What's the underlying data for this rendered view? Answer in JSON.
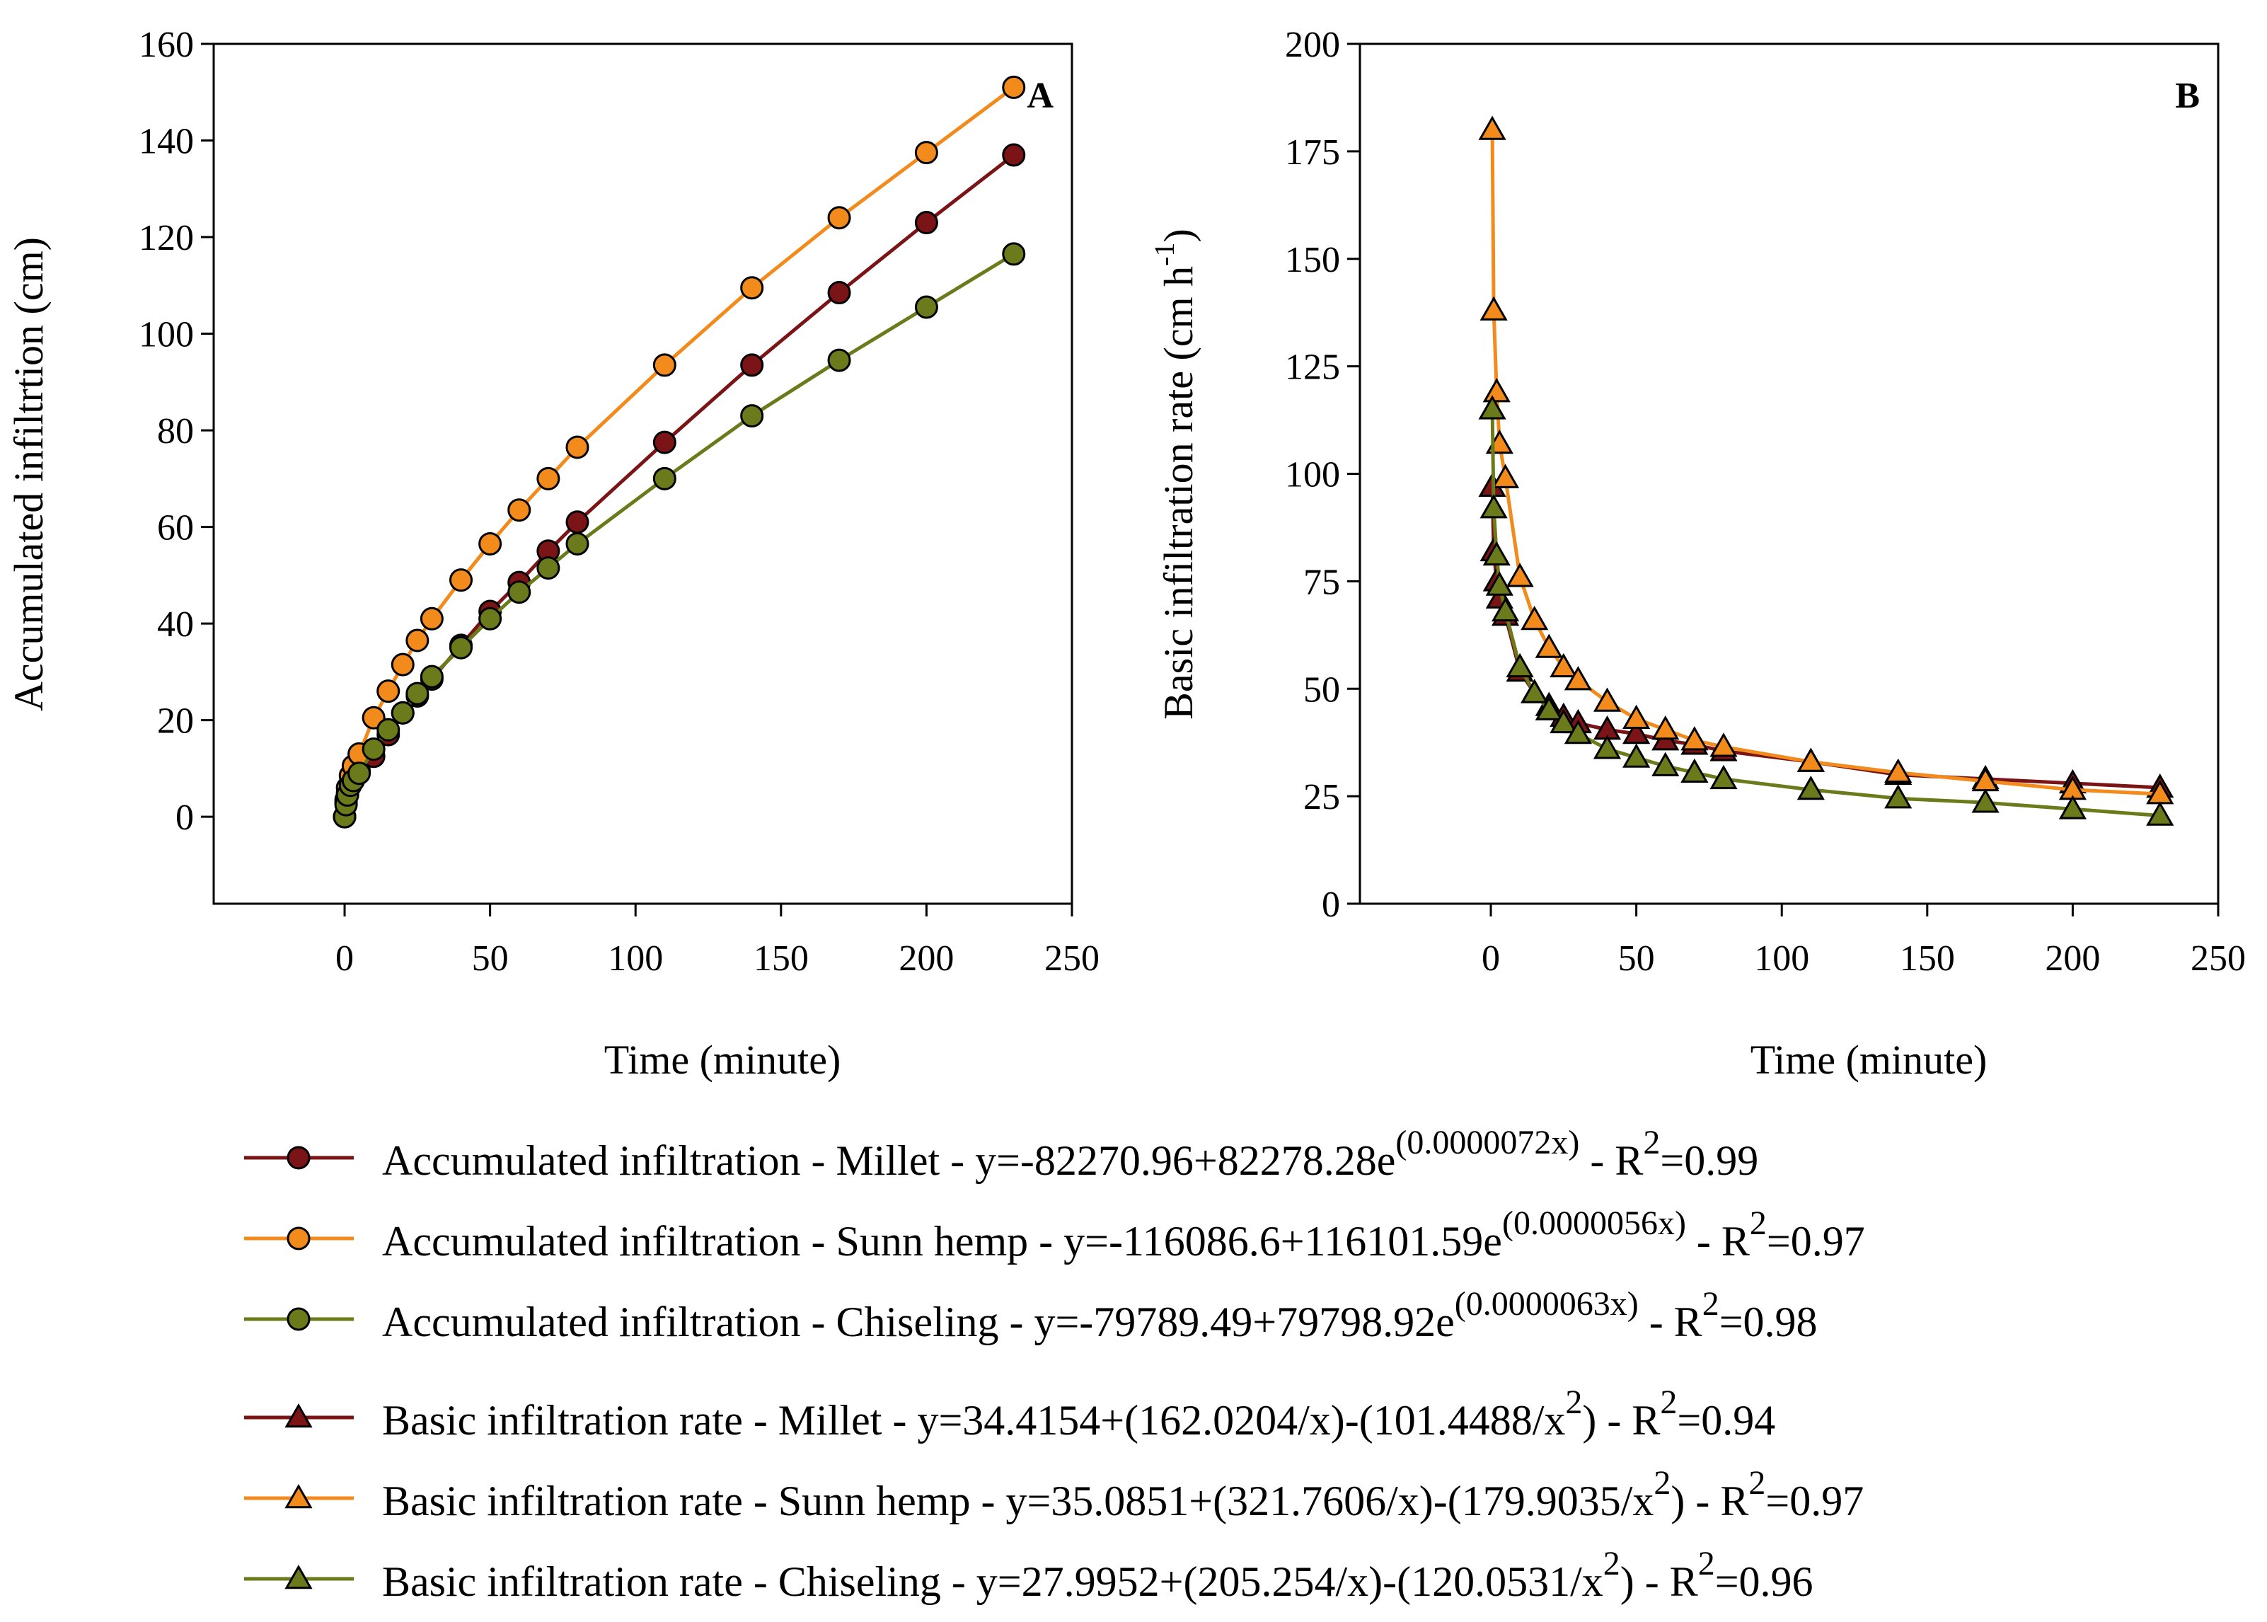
{
  "chart_data": [
    {
      "type": "line",
      "panel_label": "A",
      "xlabel": "Time (minute)",
      "ylabel": "Accumulated infiltrtion (cm)",
      "xlim": [
        -45,
        250
      ],
      "ylim": [
        -18,
        160
      ],
      "xticks": [
        0,
        50,
        100,
        150,
        200,
        250
      ],
      "yticks": [
        0,
        20,
        40,
        60,
        80,
        100,
        120,
        140,
        160
      ],
      "grid": false,
      "marker": "circle",
      "x": [
        0,
        0.5,
        1,
        2,
        3,
        5,
        10,
        15,
        20,
        25,
        30,
        40,
        50,
        60,
        70,
        80,
        110,
        140,
        170,
        200,
        230
      ],
      "series": [
        {
          "name": "Accumulated infiltration - Millet",
          "color": "#7B1416",
          "values": [
            0,
            3,
            5,
            7,
            8.5,
            9.5,
            12.5,
            17,
            21.5,
            25,
            28.5,
            35.5,
            42.5,
            48.5,
            55,
            61,
            77.5,
            93.5,
            108.5,
            123,
            137
          ]
        },
        {
          "name": "Accumulated infiltration - Sunn hemp",
          "color": "#F28A1C",
          "values": [
            0,
            3.5,
            6,
            8.5,
            10.5,
            13,
            20.5,
            26,
            31.5,
            36.5,
            41,
            49,
            56.5,
            63.5,
            70,
            76.5,
            93.5,
            109.5,
            124,
            137.5,
            151
          ]
        },
        {
          "name": "Accumulated infiltration - Chiseling",
          "color": "#6B7A1A",
          "values": [
            0,
            2.5,
            4.5,
            6.5,
            7.5,
            9,
            14,
            18,
            21.5,
            25.5,
            29,
            35,
            41,
            46.5,
            51.5,
            56.5,
            70,
            83,
            94.5,
            105.5,
            116.5
          ]
        }
      ]
    },
    {
      "type": "line",
      "panel_label": "B",
      "xlabel": "Time (minute)",
      "ylabel": "Basic infiltration rate (cm h",
      "ylabel_sup": "-1",
      "ylabel_end": ")",
      "xlim": [
        -45,
        250
      ],
      "ylim": [
        0,
        200
      ],
      "xticks": [
        0,
        50,
        100,
        150,
        200,
        250
      ],
      "yticks": [
        0,
        25,
        50,
        75,
        100,
        125,
        150,
        175,
        200
      ],
      "grid": false,
      "marker": "triangle",
      "x": [
        0.5,
        1,
        2,
        3,
        5,
        10,
        15,
        20,
        25,
        30,
        40,
        50,
        60,
        70,
        80,
        110,
        140,
        170,
        200,
        230
      ],
      "series": [
        {
          "name": "Basic infiltration rate - Millet",
          "color": "#7B1416",
          "values": [
            97,
            82,
            75,
            71,
            67,
            54,
            49,
            46,
            43.5,
            42,
            40.5,
            39.5,
            38,
            37,
            35.5,
            33,
            30,
            29,
            28,
            27
          ]
        },
        {
          "name": "Basic infiltration rate - Sunn hemp",
          "color": "#F28A1C",
          "values": [
            180,
            138,
            119,
            107,
            99,
            76,
            66,
            59.5,
            55,
            52,
            47,
            43,
            40.5,
            38,
            36.5,
            33,
            30.5,
            28.5,
            26.5,
            25.5
          ]
        },
        {
          "name": "Basic infiltration rate - Chiseling",
          "color": "#6B7A1A",
          "values": [
            115,
            92,
            81,
            74,
            68,
            55,
            49,
            45,
            42,
            39.5,
            36,
            34,
            32,
            30.5,
            29,
            26.5,
            24.5,
            23.5,
            22,
            20.5
          ]
        }
      ]
    }
  ],
  "legend": {
    "placement": "bottom",
    "entries": [
      {
        "marker": "circle",
        "color": "#7B1416",
        "pre": "Accumulated infiltration - Millet - y=-82270.96+82278.28e",
        "sup": "(0.0000072x)",
        "mid": " - R",
        "sup2": "2",
        "post": "=0.99"
      },
      {
        "marker": "circle",
        "color": "#F28A1C",
        "pre": "Accumulated infiltration - Sunn hemp - y=-116086.6+116101.59e",
        "sup": "(0.0000056x)",
        "mid": " - R",
        "sup2": "2",
        "post": "=0.97"
      },
      {
        "marker": "circle",
        "color": "#6B7A1A",
        "pre": "Accumulated infiltration - Chiseling - y=-79789.49+79798.92e",
        "sup": "(0.0000063x)",
        "mid": " - R",
        "sup2": "2",
        "post": "=0.98"
      },
      {
        "marker": "triangle",
        "color": "#7B1416",
        "pre": "Basic infiltration rate - Millet - y=34.4154+(162.0204/x)-(101.4488/x",
        "sup": "2",
        "mid": ") - R",
        "sup2": "2",
        "post": "=0.94"
      },
      {
        "marker": "triangle",
        "color": "#F28A1C",
        "pre": "Basic infiltration rate - Sunn hemp - y=35.0851+(321.7606/x)-(179.9035/x",
        "sup": "2",
        "mid": ") - R",
        "sup2": "2",
        "post": "=0.97"
      },
      {
        "marker": "triangle",
        "color": "#6B7A1A",
        "pre": "Basic infiltration rate - Chiseling - y=27.9952+(205.254/x)-(120.0531/x",
        "sup": "2",
        "mid": ") - R",
        "sup2": "2",
        "post": "=0.96"
      }
    ]
  }
}
